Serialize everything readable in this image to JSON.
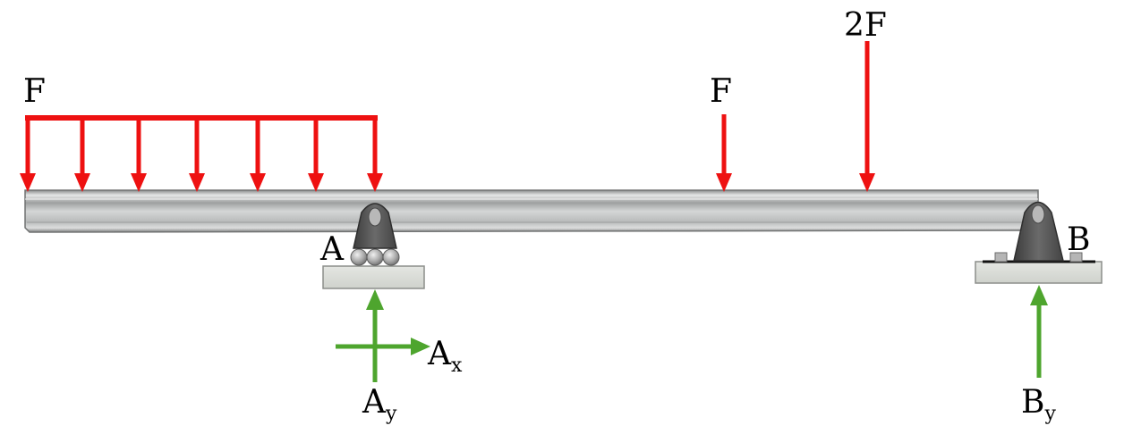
{
  "labels": {
    "dist_load": "F",
    "point_load_1": "F",
    "point_load_2": "2F",
    "support_a": "A",
    "support_b": "B",
    "ax_main": "A",
    "ax_sub": "x",
    "ay_main": "A",
    "ay_sub": "y",
    "by_main": "B",
    "by_sub": "y"
  },
  "colors": {
    "applied_load": "#ee1111",
    "reaction": "#4ea52e",
    "beam": "#c2c4c4",
    "support_bracket": "#5a5a5a",
    "base_plate": "#d9dcd8"
  }
}
